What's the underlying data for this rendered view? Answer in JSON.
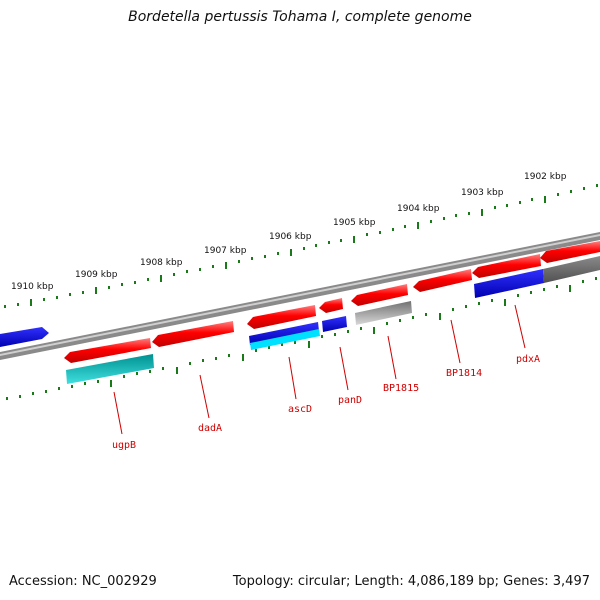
{
  "title": "Bordetella pertussis Tohama I, complete genome",
  "footer": {
    "accession": "Accession: NC_002929",
    "summary": "Topology: circular; Length: 4,086,189 bp; Genes: 3,497"
  },
  "colors": {
    "forward_gene": "#ff0000",
    "reverse_gene": "#0000ee",
    "rna": "#00c8c8",
    "pseudo": "#9a9a9a",
    "backbone": "#777777",
    "tick": "#1a7a1a",
    "label": "#d00000"
  },
  "kbp_labels": [
    "1910 kbp",
    "1909 kbp",
    "1908 kbp",
    "1907 kbp",
    "1906 kbp",
    "1905 kbp",
    "1904 kbp",
    "1903 kbp",
    "1902 kbp"
  ],
  "gene_labels": [
    "ugpB",
    "dadA",
    "ascD",
    "panD",
    "BP1815",
    "BP1814",
    "pdxA"
  ]
}
